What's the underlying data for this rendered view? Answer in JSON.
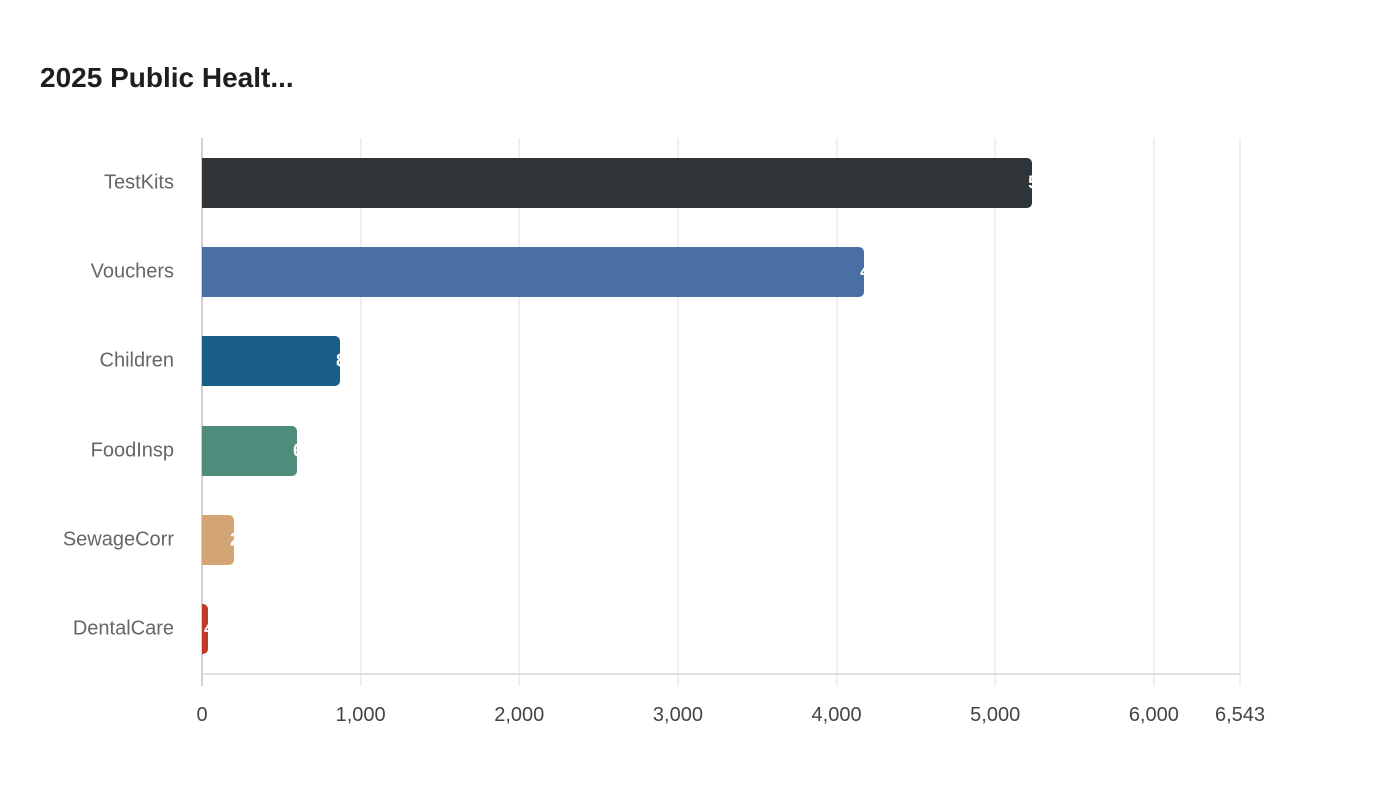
{
  "title": "2025 Public Healt...",
  "chart_data": {
    "type": "bar",
    "orientation": "horizontal",
    "title": "2025 Public Healt...",
    "xlabel": "",
    "ylabel": "",
    "categories": [
      "TestKits",
      "Vouchers",
      "Children",
      "FoodInsp",
      "SewageCorr",
      "DentalCare"
    ],
    "values": [
      5233,
      4174,
      870,
      599,
      202,
      38
    ],
    "colors": [
      "#2e3437",
      "#4a6fa5",
      "#1a5f87",
      "#4f8c7b",
      "#d4a574",
      "#c0392b"
    ],
    "xlim": [
      0,
      6543
    ],
    "xticks": [
      0,
      1000,
      2000,
      3000,
      4000,
      5000,
      6000,
      6543
    ],
    "xtick_labels": [
      "0",
      "1,000",
      "2,000",
      "3,000",
      "4,000",
      "5,000",
      "6,000",
      "6,543"
    ],
    "value_labels_partial": [
      "5",
      "4",
      "8",
      "6",
      "2",
      "4"
    ],
    "grid": true,
    "legend": "none"
  }
}
